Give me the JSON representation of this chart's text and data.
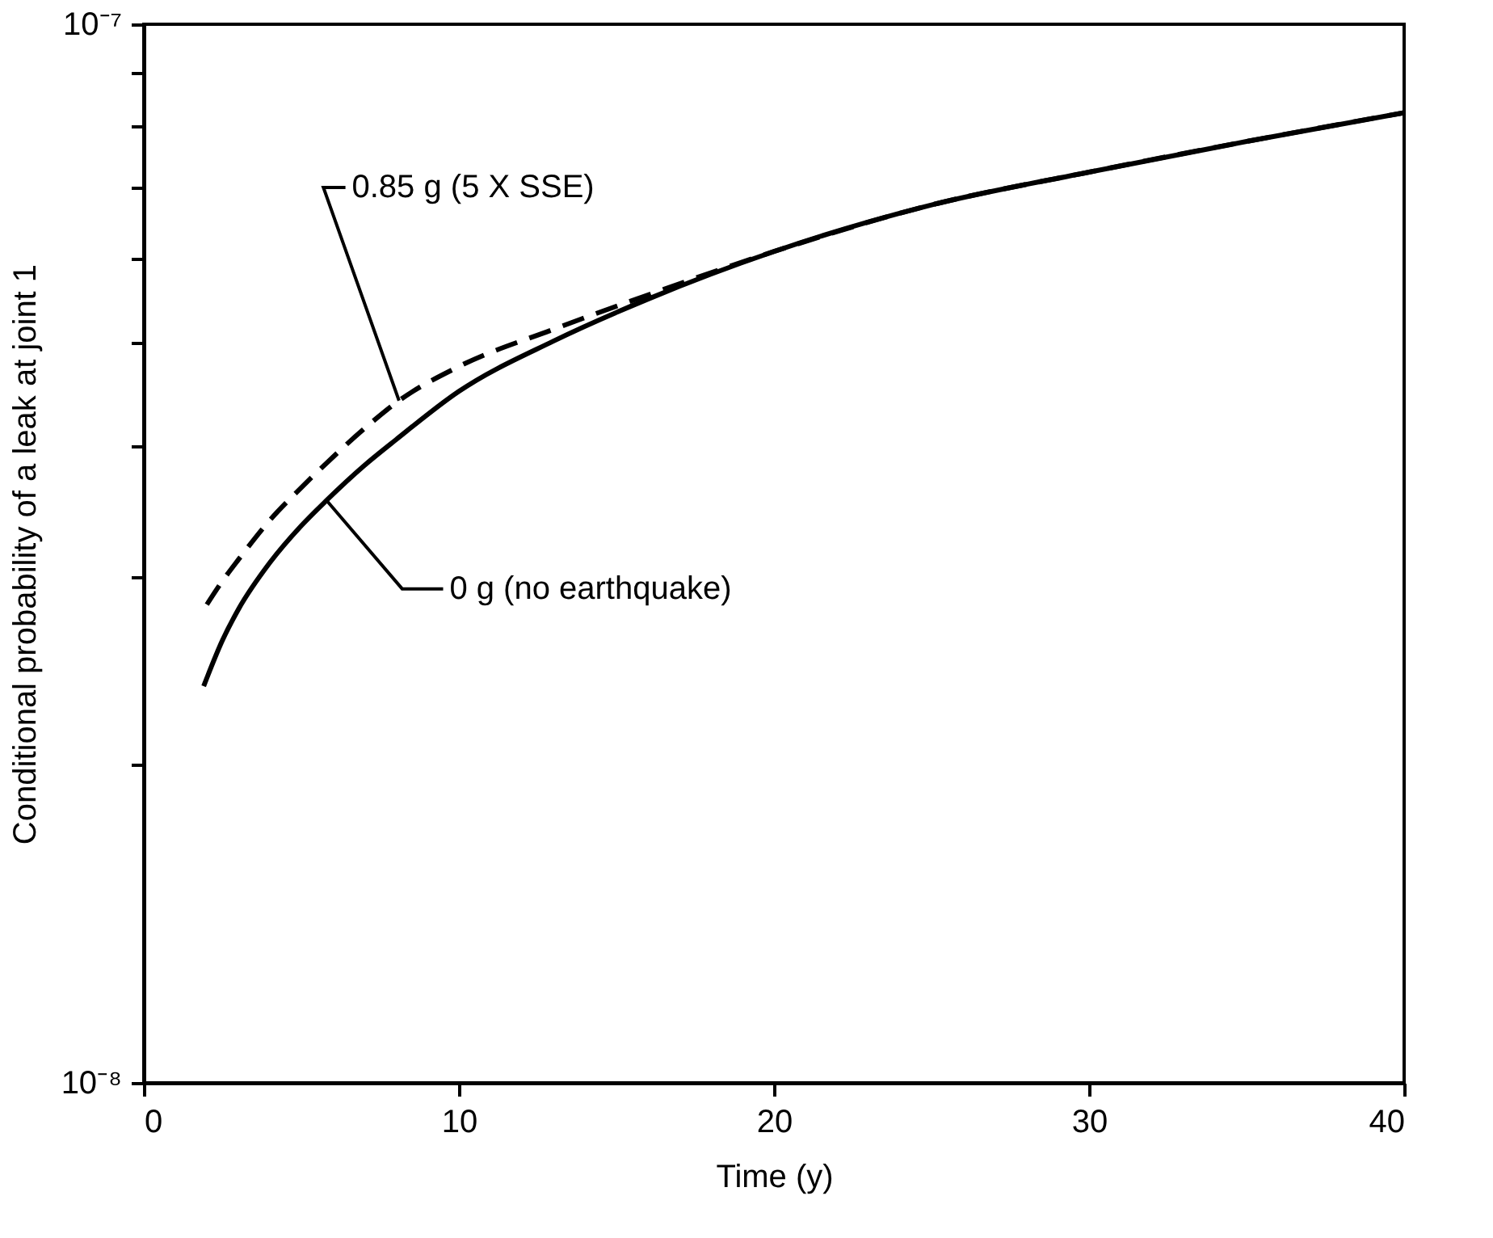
{
  "chart_data": {
    "type": "line",
    "xlabel": "Time (y)",
    "ylabel": "Conditional probability of a leak at joint 1",
    "log": "y",
    "xlim": [
      0,
      40
    ],
    "xticks": [
      0,
      10,
      20,
      30,
      40
    ],
    "ylim": [
      1e-08,
      1e-07
    ],
    "yticks": [
      {
        "value": 1e-08,
        "label": "10⁻⁸"
      },
      {
        "value": 2e-08,
        "label": null
      },
      {
        "value": 3e-08,
        "label": null
      },
      {
        "value": 4e-08,
        "label": null
      },
      {
        "value": 5e-08,
        "label": null
      },
      {
        "value": 6e-08,
        "label": null
      },
      {
        "value": 7e-08,
        "label": null
      },
      {
        "value": 8e-08,
        "label": null
      },
      {
        "value": 9e-08,
        "label": null
      },
      {
        "value": 1e-07,
        "label": "10⁻⁷"
      }
    ],
    "grid": false,
    "marker": "none",
    "series": [
      {
        "color": "#000000",
        "line_style": "solid",
        "x": [
          1.9,
          2.5,
          3,
          4,
          5,
          5.8,
          7,
          8,
          10,
          13,
          16,
          20,
          25,
          30,
          35,
          40
        ],
        "values": [
          2.37e-08,
          2.62e-08,
          2.8e-08,
          3.1e-08,
          3.36e-08,
          3.55e-08,
          3.83e-08,
          4.05e-08,
          4.5e-08,
          5.02e-08,
          5.5e-08,
          6.1e-08,
          6.75e-08,
          7.25e-08,
          7.75e-08,
          8.25e-08
        ]
      },
      {
        "color": "#000000",
        "line_style": "dashed",
        "x": [
          2,
          2.5,
          3,
          4,
          5,
          6,
          7,
          8.1,
          10,
          13,
          16,
          20,
          25,
          30,
          35,
          40
        ],
        "values": [
          2.83e-08,
          2.98e-08,
          3.12e-08,
          3.4e-08,
          3.65e-08,
          3.9e-08,
          4.15e-08,
          4.41e-08,
          4.75e-08,
          5.15e-08,
          5.55e-08,
          6.1e-08,
          6.75e-08,
          7.25e-08,
          7.75e-08,
          8.25e-08
        ]
      }
    ],
    "annotations": [
      {
        "text": "0.85 g (5 X SSE)",
        "x": 8.1,
        "y": 4.41e-08
      },
      {
        "text": "0 g (no earthquake)",
        "x": 5.8,
        "y": 3.55e-08
      }
    ]
  }
}
